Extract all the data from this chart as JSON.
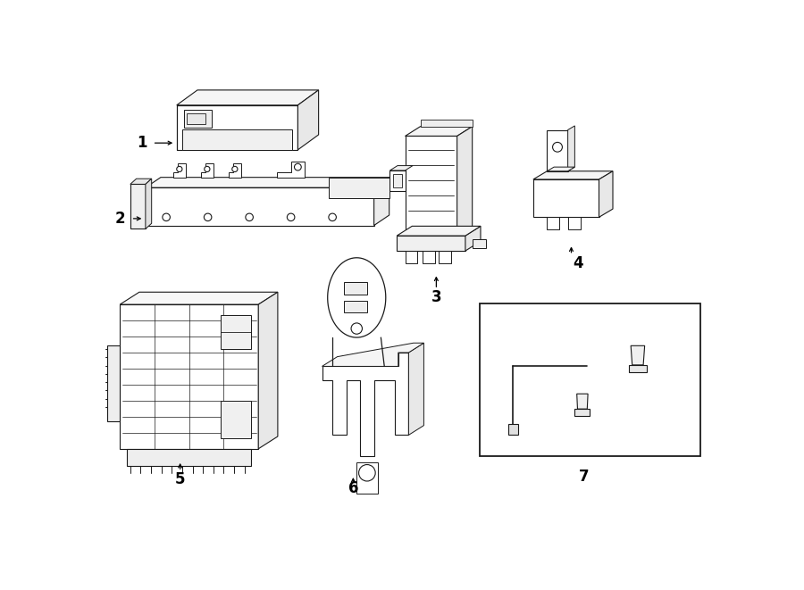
{
  "bg": "#ffffff",
  "lc": "#1a1a1a",
  "lw": 0.8,
  "fc": "#ffffff",
  "fc2": "#f0f0f0",
  "fc3": "#e8e8e8",
  "fig_w": 9.0,
  "fig_h": 6.61,
  "dpi": 100,
  "xlim": [
    0,
    900
  ],
  "ylim": [
    0,
    661
  ]
}
